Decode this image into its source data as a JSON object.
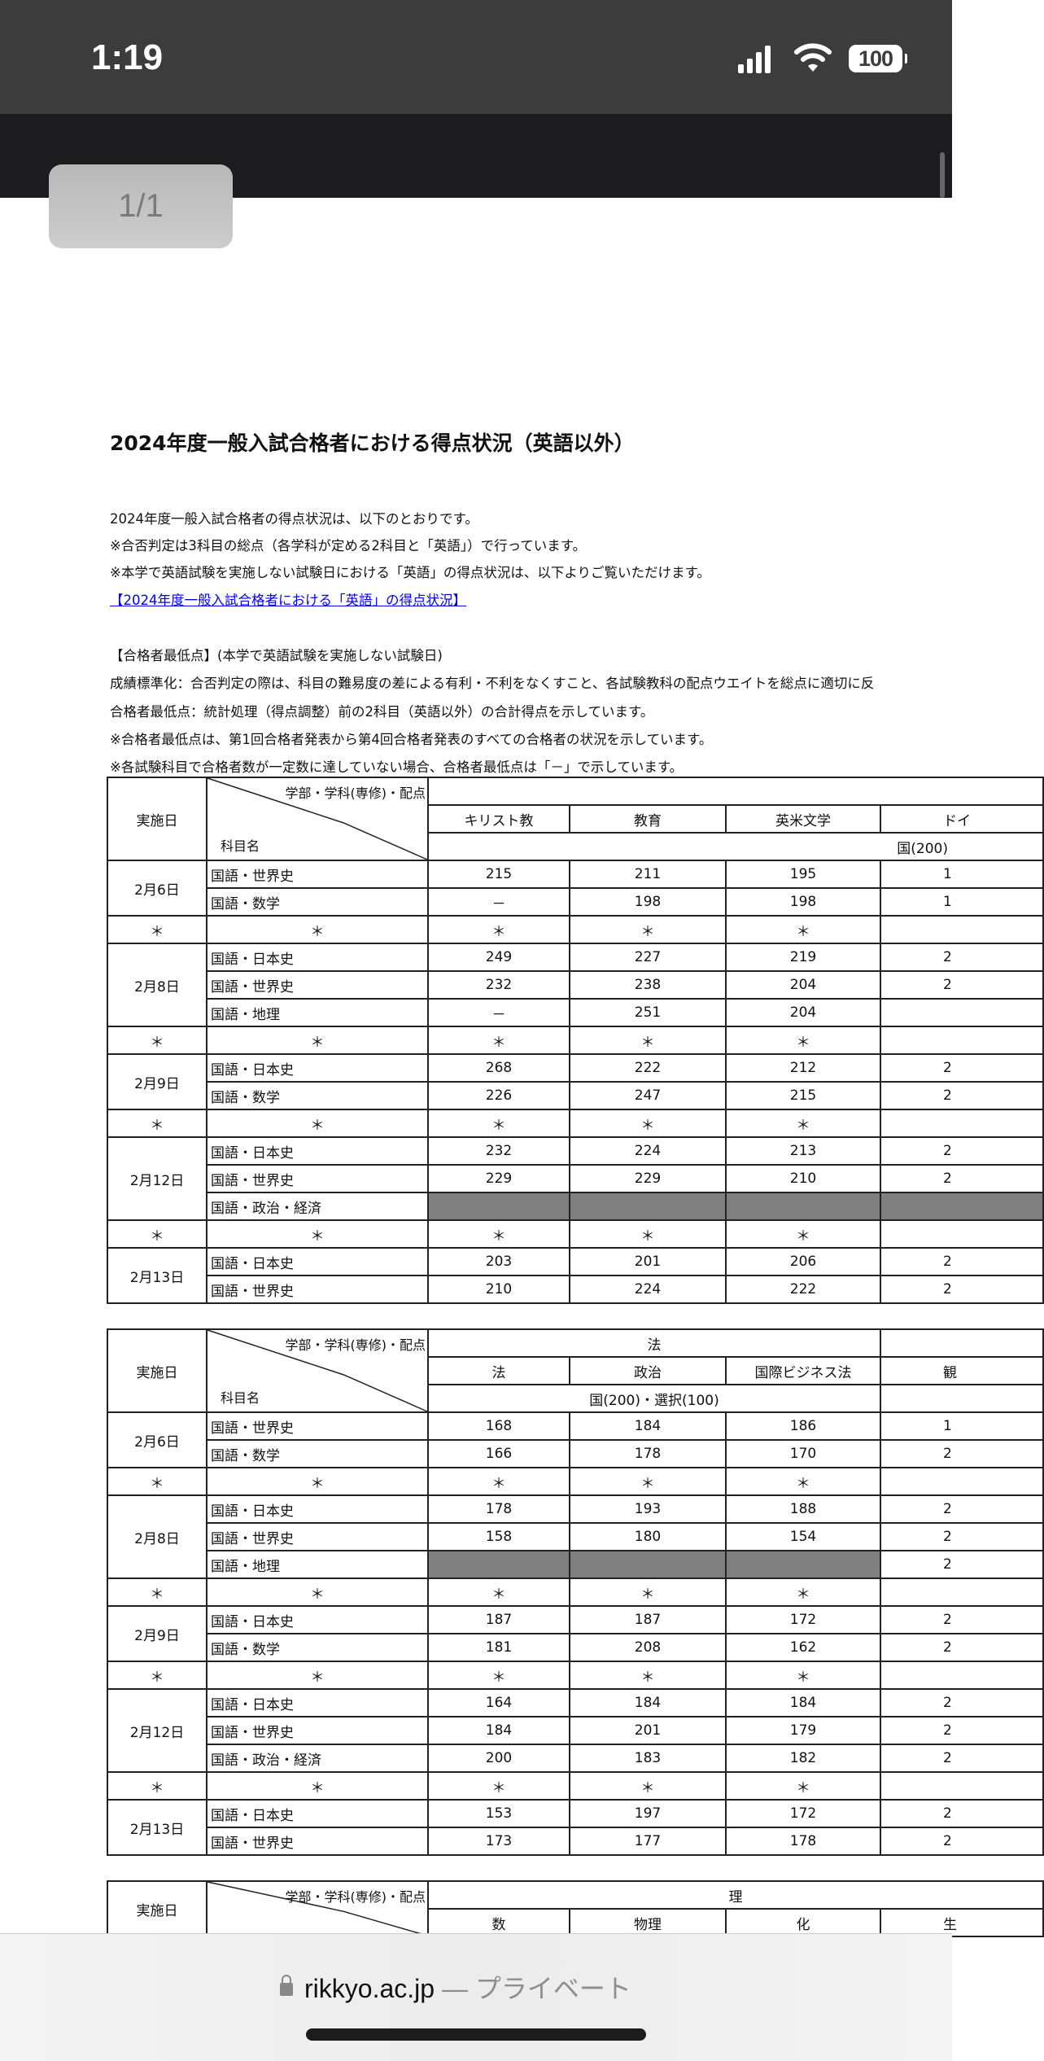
{
  "status_bar": {
    "time": "1:19",
    "battery": "100"
  },
  "viewer": {
    "page_indicator": "1/1"
  },
  "document": {
    "title": "2024年度一般入試合格者における得点状況（英語以外）",
    "intro": [
      "2024年度一般入試合格者の得点状況は、以下のとおりです。",
      "※合否判定は3科目の総点（各学科が定める2科目と「英語」）で行っています。",
      "※本学で英語試験を実施しない試験日における「英語」の得点状況は、以下よりご覧いただけます。"
    ],
    "link": "【2024年度一般入試合格者における「英語」の得点状況】",
    "notes": [
      "【合格者最低点】(本学で英語試験を実施しない試験日)",
      "成績標準化：合否判定の際は、科目の難易度の差による有利・不利をなくすこと、各試験教科の配点ウエイトを総点に適切に反",
      "合格者最低点：統計処理（得点調整）前の2科目（英語以外）の合計得点を示しています。",
      "※合格者最低点は、第1回合格者発表から第4回合格者発表のすべての合格者の状況を示しています。",
      "※各試験科目で合格者数が一定数に達していない場合、合格者最低点は「－」で示しています。"
    ],
    "tables": [
      {
        "header_date": "実施日",
        "header_dept": "学部・学科(専修)・配点",
        "header_subject": "科目名",
        "group": "",
        "group_span": 4,
        "columns": [
          "キリスト教",
          "教育",
          "英米文学",
          "ドイ"
        ],
        "allocation": "国(200)",
        "allocation_mode": "right",
        "blocks": [
          {
            "date": "2月6日",
            "rows": [
              {
                "subject": "国語・世界史",
                "values": [
                  "215",
                  "211",
                  "195",
                  "1"
                ]
              },
              {
                "subject": "国語・数学",
                "values": [
                  "－",
                  "198",
                  "198",
                  "1"
                ]
              }
            ]
          },
          {
            "star": "＊"
          },
          {
            "date": "2月8日",
            "rows": [
              {
                "subject": "国語・日本史",
                "values": [
                  "249",
                  "227",
                  "219",
                  "2"
                ]
              },
              {
                "subject": "国語・世界史",
                "values": [
                  "232",
                  "238",
                  "204",
                  "2"
                ]
              },
              {
                "subject": "国語・地理",
                "values": [
                  "－",
                  "251",
                  "204",
                  ""
                ]
              }
            ]
          },
          {
            "star": "＊"
          },
          {
            "date": "2月9日",
            "rows": [
              {
                "subject": "国語・日本史",
                "values": [
                  "268",
                  "222",
                  "212",
                  "2"
                ]
              },
              {
                "subject": "国語・数学",
                "values": [
                  "226",
                  "247",
                  "215",
                  "2"
                ]
              }
            ]
          },
          {
            "star": "＊"
          },
          {
            "date": "2月12日",
            "rows": [
              {
                "subject": "国語・日本史",
                "values": [
                  "232",
                  "224",
                  "213",
                  "2"
                ]
              },
              {
                "subject": "国語・世界史",
                "values": [
                  "229",
                  "229",
                  "210",
                  "2"
                ]
              },
              {
                "subject": "国語・政治・経済",
                "values": [
                  null,
                  null,
                  null,
                  null
                ]
              }
            ]
          },
          {
            "star": "＊"
          },
          {
            "date": "2月13日",
            "rows": [
              {
                "subject": "国語・日本史",
                "values": [
                  "203",
                  "201",
                  "206",
                  "2"
                ]
              },
              {
                "subject": "国語・世界史",
                "values": [
                  "210",
                  "224",
                  "222",
                  "2"
                ]
              }
            ]
          }
        ]
      },
      {
        "header_date": "実施日",
        "header_dept": "学部・学科(専修)・配点",
        "header_subject": "科目名",
        "group": "法",
        "group_span": 3,
        "columns": [
          "法",
          "政治",
          "国際ビジネス法",
          "観"
        ],
        "allocation": "国(200)・選択(100)",
        "allocation_mode": "center",
        "blocks": [
          {
            "date": "2月6日",
            "rows": [
              {
                "subject": "国語・世界史",
                "values": [
                  "168",
                  "184",
                  "186",
                  "1"
                ]
              },
              {
                "subject": "国語・数学",
                "values": [
                  "166",
                  "178",
                  "170",
                  "2"
                ]
              }
            ]
          },
          {
            "star": "＊"
          },
          {
            "date": "2月8日",
            "rows": [
              {
                "subject": "国語・日本史",
                "values": [
                  "178",
                  "193",
                  "188",
                  "2"
                ]
              },
              {
                "subject": "国語・世界史",
                "values": [
                  "158",
                  "180",
                  "154",
                  "2"
                ]
              },
              {
                "subject": "国語・地理",
                "values": [
                  null,
                  null,
                  null,
                  "2"
                ]
              }
            ]
          },
          {
            "star": "＊"
          },
          {
            "date": "2月9日",
            "rows": [
              {
                "subject": "国語・日本史",
                "values": [
                  "187",
                  "187",
                  "172",
                  "2"
                ]
              },
              {
                "subject": "国語・数学",
                "values": [
                  "181",
                  "208",
                  "162",
                  "2"
                ]
              }
            ]
          },
          {
            "star": "＊"
          },
          {
            "date": "2月12日",
            "rows": [
              {
                "subject": "国語・日本史",
                "values": [
                  "164",
                  "184",
                  "184",
                  "2"
                ]
              },
              {
                "subject": "国語・世界史",
                "values": [
                  "184",
                  "201",
                  "179",
                  "2"
                ]
              },
              {
                "subject": "国語・政治・経済",
                "values": [
                  "200",
                  "183",
                  "182",
                  "2"
                ]
              }
            ]
          },
          {
            "star": "＊"
          },
          {
            "date": "2月13日",
            "rows": [
              {
                "subject": "国語・日本史",
                "values": [
                  "153",
                  "197",
                  "172",
                  "2"
                ]
              },
              {
                "subject": "国語・世界史",
                "values": [
                  "173",
                  "177",
                  "178",
                  "2"
                ]
              }
            ]
          }
        ]
      },
      {
        "header_date": "実施日",
        "header_dept": "学部・学科(専修)・配点",
        "header_subject": "",
        "group": "理",
        "group_span": 4,
        "columns": [
          "数",
          "物理",
          "化",
          "生"
        ],
        "allocation": null,
        "blocks": []
      }
    ]
  },
  "browser": {
    "domain": "rikkyo.ac.jp",
    "suffix": " — プライベート"
  }
}
